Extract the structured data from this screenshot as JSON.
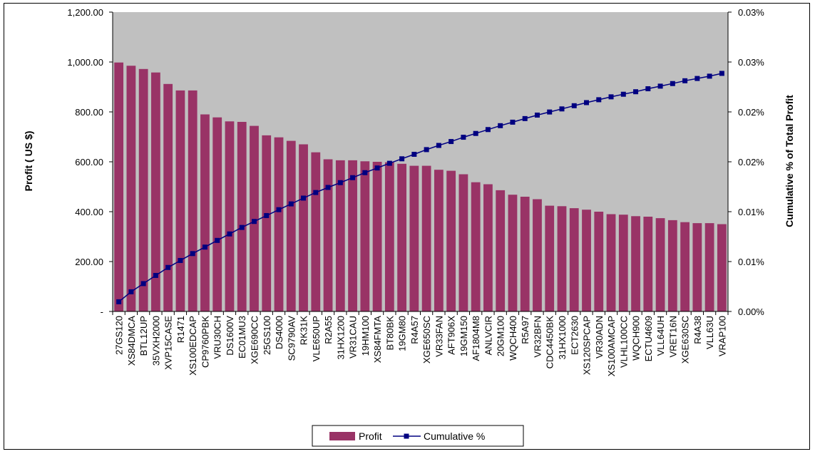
{
  "chart_data": {
    "type": "bar",
    "title": "",
    "xlabel": "",
    "ylabel": "Profit ( US $)",
    "y2label": "Cumulative % of Total Profit",
    "ylim": [
      0,
      1200
    ],
    "y2lim": [
      0,
      0.03
    ],
    "y_ticks": [
      "-",
      "200.00",
      "400.00",
      "600.00",
      "800.00",
      "1,000.00",
      "1,200.00"
    ],
    "y2_ticks": [
      "0.00%",
      "0.01%",
      "0.01%",
      "0.02%",
      "0.02%",
      "0.03%",
      "0.03%"
    ],
    "grid": false,
    "plot_area_color": "#c0c0c0",
    "legend_position": "bottom",
    "categories": [
      "27GS120",
      "XS84DMCA",
      "BTL12UP",
      "35VXH2000",
      "XVP15CASE",
      "R1471",
      "XS100EDCAP",
      "CP9760PBK",
      "VRU30CH",
      "DS1600V",
      "EC01MU3",
      "XGE690CC",
      "25GS100",
      "DS4000",
      "SC9790AV",
      "RK31K",
      "VLE650UP",
      "R2A55",
      "31HX1200",
      "VR31CAU",
      "19HM100",
      "XS84FMTA",
      "BT80BK",
      "19GM80",
      "R4A57",
      "XGE650SC",
      "VR33FAN",
      "AFT906X",
      "19GM150",
      "AF1804M8",
      "ANLVCIR",
      "20GM100",
      "WQCH400",
      "R5A97",
      "VR32BFN",
      "CDC4450BK",
      "31HX1000",
      "ECT2630",
      "XS120SPCAP",
      "VR30ADN",
      "XS100AMCAP",
      "VLHL100CC",
      "WQCH900",
      "ECTU4609",
      "VLL64UH",
      "VRET16N",
      "XGE630SC",
      "R4A38",
      "VLL63U",
      "VRAP100"
    ],
    "series": [
      {
        "name": "Profit",
        "type": "bar",
        "axis": "left",
        "color": "#993366",
        "values": [
          998,
          985,
          972,
          958,
          912,
          886,
          886,
          790,
          778,
          762,
          760,
          744,
          706,
          698,
          684,
          670,
          638,
          610,
          606,
          606,
          602,
          600,
          598,
          592,
          584,
          584,
          568,
          564,
          550,
          518,
          510,
          486,
          468,
          460,
          450,
          424,
          422,
          414,
          408,
          400,
          390,
          388,
          382,
          380,
          374,
          366,
          358,
          354,
          354,
          350
        ]
      },
      {
        "name": "Cumulative %",
        "type": "line",
        "axis": "right",
        "color": "#000080",
        "values": [
          0.00097,
          0.00197,
          0.00279,
          0.00361,
          0.00441,
          0.00511,
          0.0058,
          0.00645,
          0.00712,
          0.00777,
          0.00842,
          0.00902,
          0.00961,
          0.0102,
          0.01078,
          0.01136,
          0.01192,
          0.01243,
          0.01291,
          0.01341,
          0.01391,
          0.01438,
          0.01485,
          0.0153,
          0.01575,
          0.01622,
          0.01664,
          0.01703,
          0.01746,
          0.01784,
          0.01823,
          0.01862,
          0.01897,
          0.01933,
          0.01968,
          0.01999,
          0.0203,
          0.02062,
          0.02093,
          0.02122,
          0.02151,
          0.02177,
          0.02202,
          0.02232,
          0.02258,
          0.02284,
          0.02312,
          0.02335,
          0.02358,
          0.02386
        ]
      }
    ]
  }
}
